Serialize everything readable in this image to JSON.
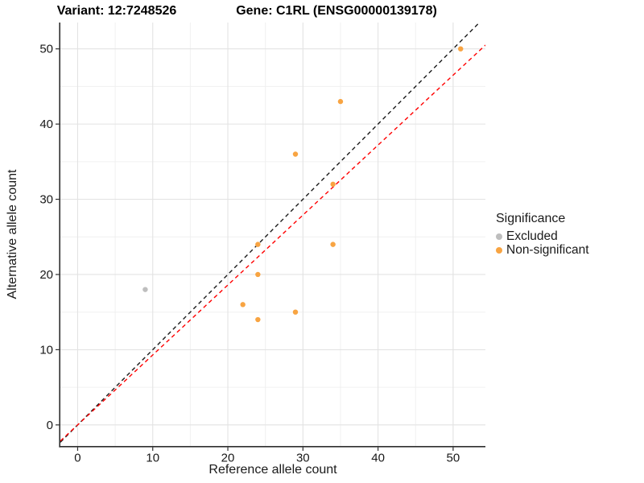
{
  "titles": {
    "variant": "Variant: 12:7248526",
    "gene": "Gene: C1RL (ENSG00000139178)"
  },
  "legend": {
    "title": "Significance",
    "items": [
      {
        "label": "Excluded",
        "color": "#BEBEBE"
      },
      {
        "label": "Non-significant",
        "color": "#F8A442"
      }
    ]
  },
  "chart_data": {
    "type": "scatter",
    "title": "",
    "xlabel": "Reference allele count",
    "ylabel": "Alternative allele count",
    "xlim": [
      -2.3,
      54.3
    ],
    "ylim": [
      -2.8,
      53.5
    ],
    "xticks": [
      0,
      10,
      20,
      30,
      40,
      50
    ],
    "yticks": [
      0,
      10,
      20,
      30,
      40,
      50
    ],
    "minor_grid_x": [
      5,
      15,
      25,
      35,
      45
    ],
    "minor_grid_y": [
      5,
      15,
      25,
      35,
      45
    ],
    "grid": true,
    "legend_position": "right",
    "series": [
      {
        "name": "Excluded",
        "color": "#BEBEBE",
        "points": [
          [
            9,
            18
          ]
        ]
      },
      {
        "name": "Non-significant",
        "color": "#F8A442",
        "points": [
          [
            22,
            16
          ],
          [
            24,
            14
          ],
          [
            24,
            20
          ],
          [
            24,
            24
          ],
          [
            29,
            15
          ],
          [
            29,
            36
          ],
          [
            34,
            24
          ],
          [
            34,
            32
          ],
          [
            35,
            43
          ],
          [
            51,
            50
          ]
        ]
      }
    ],
    "lines": [
      {
        "name": "identity-line",
        "slope": 1.0,
        "intercept": 0,
        "color": "#1A1A1A",
        "style": "dashed"
      },
      {
        "name": "fit-line",
        "slope": 0.93,
        "intercept": 0,
        "color": "#FF0000",
        "style": "dashed"
      }
    ],
    "colors": {
      "major_grid": "#E3E3E3",
      "minor_grid": "#F0F0F0",
      "axis_line": "#2F2F2F",
      "tick_label": "#191919"
    }
  }
}
